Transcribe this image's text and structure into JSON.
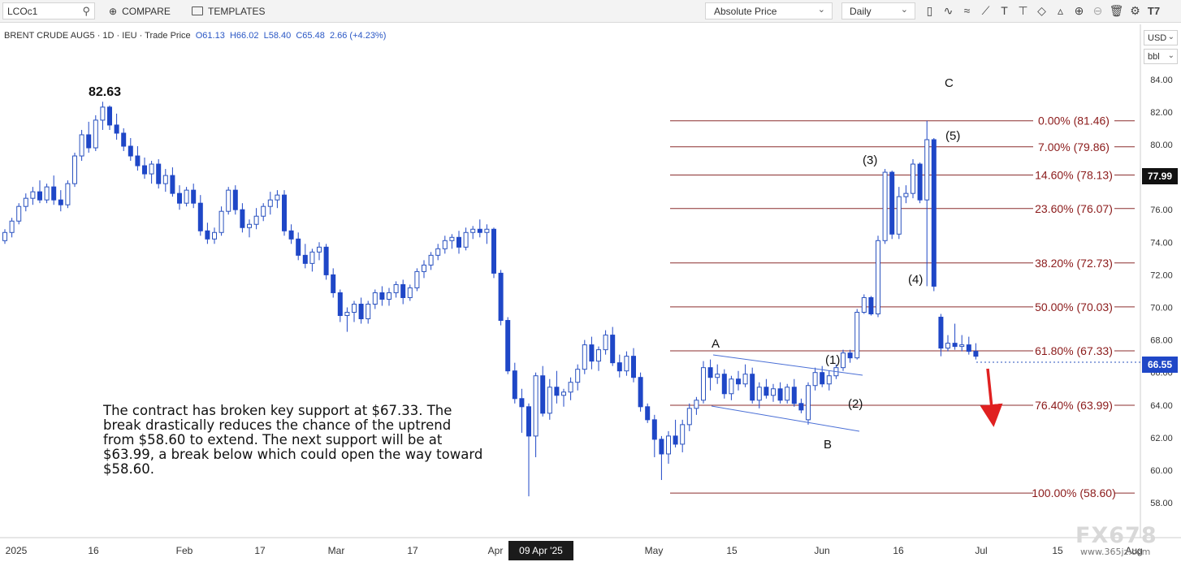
{
  "toolbar": {
    "symbol": "LCOc1",
    "compare_label": "COMPARE",
    "templates_label": "TEMPLATES",
    "price_mode": "Absolute Price",
    "interval": "Daily"
  },
  "instrument_line": {
    "name": "BRENT CRUDE AUG5 · 1D · IEU · Trade Price",
    "open": "O61.13",
    "high": "H66.02",
    "low": "L58.40",
    "close": "C65.48",
    "change": "2.66 (+4.23%)"
  },
  "currency": "USD",
  "unit": "bbl",
  "colors": {
    "candle_up_fill": "#ffffff",
    "candle_up_border": "#2a52be",
    "candle_down": "#1f47c7",
    "fib_line": "#8b2e2e",
    "fib_label": "#8b1a1a",
    "arrow": "#e02020",
    "trendline": "#4a6fd6"
  },
  "annotation_text": "The contract has broken key support at $67.33. The break drastically reduces the chance of the uptrend from $58.60 to extend. The next support will be at $63.99, a break below which could open the way toward $58.60.",
  "watermark": "FX678",
  "watermark_url": "www.365jz.com",
  "crosshair_date": "09 Apr '25",
  "chart_data": {
    "type": "candlestick",
    "title": "BRENT CRUDE AUG5",
    "ylim": [
      57,
      86
    ],
    "y_ticks": [
      58,
      60,
      62,
      64,
      66,
      68,
      70,
      72,
      74,
      76,
      78,
      80,
      82,
      84
    ],
    "y_tick_labels": [
      "58.00",
      "60.00",
      "62.00",
      "64.00",
      "66.00",
      "68.00",
      "70.00",
      "72.00",
      "74.00",
      "76.00",
      "78.00",
      "80.00",
      "82.00",
      "84.00"
    ],
    "x_labels": [
      "2025",
      "16",
      "Feb",
      "17",
      "Mar",
      "17",
      "Apr",
      "May",
      "15",
      "Jun",
      "16",
      "Jul",
      "15",
      "Aug"
    ],
    "last_price": "66.55",
    "marked_price": "77.99",
    "candles": [
      [
        74.1,
        74.8,
        73.9,
        74.6
      ],
      [
        74.6,
        75.5,
        74.3,
        75.3
      ],
      [
        75.3,
        76.4,
        75.1,
        76.2
      ],
      [
        76.2,
        77.0,
        75.9,
        76.7
      ],
      [
        76.7,
        77.4,
        76.3,
        77.1
      ],
      [
        77.1,
        77.8,
        76.4,
        76.6
      ],
      [
        76.6,
        77.6,
        76.4,
        77.4
      ],
      [
        77.4,
        78.1,
        76.3,
        76.6
      ],
      [
        76.6,
        77.2,
        75.9,
        76.3
      ],
      [
        76.3,
        77.8,
        76.1,
        77.6
      ],
      [
        77.6,
        79.5,
        77.4,
        79.3
      ],
      [
        79.3,
        80.9,
        79.0,
        80.6
      ],
      [
        80.6,
        81.4,
        79.5,
        79.8
      ],
      [
        79.8,
        81.8,
        79.6,
        81.5
      ],
      [
        81.5,
        82.63,
        80.9,
        82.3
      ],
      [
        82.3,
        82.4,
        80.9,
        81.2
      ],
      [
        81.2,
        81.9,
        80.3,
        80.7
      ],
      [
        80.7,
        81.0,
        79.6,
        79.9
      ],
      [
        79.9,
        80.4,
        79.0,
        79.3
      ],
      [
        79.3,
        79.9,
        78.4,
        78.7
      ],
      [
        78.7,
        79.2,
        77.9,
        78.2
      ],
      [
        78.2,
        79.0,
        77.6,
        78.8
      ],
      [
        78.8,
        79.1,
        77.3,
        77.6
      ],
      [
        77.6,
        78.5,
        77.1,
        78.1
      ],
      [
        78.1,
        78.6,
        76.8,
        77.0
      ],
      [
        77.0,
        77.5,
        76.0,
        76.4
      ],
      [
        76.4,
        77.4,
        76.2,
        77.2
      ],
      [
        77.2,
        77.6,
        76.1,
        76.4
      ],
      [
        76.4,
        76.9,
        74.4,
        74.7
      ],
      [
        74.7,
        75.2,
        73.9,
        74.2
      ],
      [
        74.2,
        74.9,
        73.9,
        74.6
      ],
      [
        74.6,
        76.2,
        74.4,
        75.9
      ],
      [
        75.9,
        77.4,
        75.7,
        77.2
      ],
      [
        77.2,
        77.5,
        75.7,
        76.0
      ],
      [
        76.0,
        76.4,
        74.6,
        74.9
      ],
      [
        74.9,
        75.4,
        74.3,
        75.1
      ],
      [
        75.1,
        76.1,
        74.8,
        75.6
      ],
      [
        75.6,
        76.4,
        75.3,
        76.2
      ],
      [
        76.2,
        77.1,
        75.7,
        76.6
      ],
      [
        76.6,
        77.2,
        76.1,
        76.9
      ],
      [
        76.9,
        77.2,
        74.4,
        74.7
      ],
      [
        74.7,
        75.1,
        73.9,
        74.2
      ],
      [
        74.2,
        74.6,
        72.9,
        73.2
      ],
      [
        73.2,
        73.9,
        72.4,
        72.7
      ],
      [
        72.7,
        73.6,
        72.2,
        73.4
      ],
      [
        73.4,
        74.0,
        72.9,
        73.7
      ],
      [
        73.7,
        73.9,
        71.7,
        72.0
      ],
      [
        72.0,
        72.4,
        70.6,
        70.9
      ],
      [
        70.9,
        71.1,
        69.1,
        69.5
      ],
      [
        69.5,
        70.0,
        68.5,
        69.7
      ],
      [
        69.7,
        70.4,
        69.1,
        70.2
      ],
      [
        70.2,
        70.6,
        69.0,
        69.3
      ],
      [
        69.3,
        70.4,
        69.0,
        70.2
      ],
      [
        70.2,
        71.1,
        69.9,
        70.9
      ],
      [
        70.9,
        71.3,
        70.1,
        70.5
      ],
      [
        70.5,
        71.2,
        70.1,
        70.9
      ],
      [
        70.9,
        71.6,
        70.6,
        71.4
      ],
      [
        71.4,
        71.7,
        70.2,
        70.6
      ],
      [
        70.6,
        71.4,
        70.4,
        71.2
      ],
      [
        71.2,
        72.4,
        71.0,
        72.2
      ],
      [
        72.2,
        72.9,
        71.8,
        72.6
      ],
      [
        72.6,
        73.4,
        72.3,
        73.2
      ],
      [
        73.2,
        73.9,
        72.9,
        73.6
      ],
      [
        73.6,
        74.4,
        73.3,
        74.1
      ],
      [
        74.1,
        74.5,
        73.6,
        74.3
      ],
      [
        74.3,
        74.7,
        73.3,
        73.7
      ],
      [
        73.7,
        74.9,
        73.5,
        74.6
      ],
      [
        74.6,
        75.0,
        74.2,
        74.8
      ],
      [
        74.8,
        75.4,
        74.3,
        74.6
      ],
      [
        74.6,
        75.1,
        73.9,
        74.8
      ],
      [
        74.8,
        74.9,
        71.8,
        72.1
      ],
      [
        72.1,
        72.3,
        68.9,
        69.2
      ],
      [
        69.2,
        69.4,
        65.9,
        66.1
      ],
      [
        66.1,
        66.6,
        64.1,
        64.4
      ],
      [
        64.4,
        65.0,
        62.3,
        63.9
      ],
      [
        63.9,
        64.1,
        58.4,
        62.1
      ],
      [
        62.1,
        66.0,
        60.8,
        65.8
      ],
      [
        65.8,
        66.4,
        63.3,
        63.5
      ],
      [
        63.5,
        65.6,
        63.1,
        65.1
      ],
      [
        65.1,
        66.1,
        64.1,
        64.6
      ],
      [
        64.6,
        65.0,
        63.9,
        64.8
      ],
      [
        64.8,
        65.7,
        64.3,
        65.4
      ],
      [
        65.4,
        66.5,
        64.9,
        66.2
      ],
      [
        66.2,
        68.0,
        65.9,
        67.7
      ],
      [
        67.7,
        68.2,
        66.2,
        66.7
      ],
      [
        66.7,
        67.6,
        66.1,
        67.4
      ],
      [
        67.4,
        68.6,
        67.1,
        68.3
      ],
      [
        68.3,
        68.8,
        66.4,
        66.6
      ],
      [
        66.6,
        67.1,
        65.7,
        66.1
      ],
      [
        66.1,
        67.3,
        65.8,
        67.0
      ],
      [
        67.0,
        67.5,
        65.4,
        65.7
      ],
      [
        65.7,
        66.0,
        63.6,
        63.9
      ],
      [
        63.9,
        64.1,
        62.9,
        63.1
      ],
      [
        63.1,
        63.4,
        60.8,
        61.9
      ],
      [
        61.9,
        62.1,
        59.4,
        61.0
      ],
      [
        61.0,
        62.4,
        60.4,
        62.1
      ],
      [
        62.1,
        63.1,
        61.4,
        61.6
      ],
      [
        61.6,
        63.1,
        61.1,
        62.8
      ],
      [
        62.8,
        64.1,
        62.4,
        63.8
      ],
      [
        63.8,
        64.5,
        63.4,
        64.3
      ],
      [
        64.3,
        66.7,
        64.1,
        66.3
      ],
      [
        66.3,
        66.8,
        64.9,
        65.7
      ],
      [
        65.7,
        66.5,
        65.3,
        65.9
      ],
      [
        65.9,
        66.2,
        64.4,
        64.7
      ],
      [
        64.7,
        65.8,
        64.3,
        65.6
      ],
      [
        65.6,
        66.1,
        64.9,
        65.3
      ],
      [
        65.3,
        66.5,
        65.1,
        65.9
      ],
      [
        65.9,
        66.3,
        64.1,
        64.3
      ],
      [
        64.3,
        65.4,
        63.8,
        65.1
      ],
      [
        65.1,
        65.6,
        64.4,
        64.6
      ],
      [
        64.6,
        65.3,
        64.2,
        65.0
      ],
      [
        65.0,
        65.4,
        64.1,
        64.3
      ],
      [
        64.3,
        65.3,
        64.1,
        65.1
      ],
      [
        65.1,
        65.6,
        63.9,
        64.1
      ],
      [
        64.1,
        64.4,
        63.5,
        63.7
      ],
      [
        63.1,
        65.4,
        62.8,
        65.2
      ],
      [
        65.2,
        66.3,
        64.9,
        66.0
      ],
      [
        66.0,
        66.4,
        65.1,
        65.3
      ],
      [
        65.3,
        66.1,
        64.9,
        65.8
      ],
      [
        65.8,
        66.5,
        65.6,
        66.3
      ],
      [
        66.3,
        67.4,
        66.1,
        67.2
      ],
      [
        67.2,
        67.4,
        66.6,
        66.9
      ],
      [
        66.9,
        69.9,
        66.8,
        69.7
      ],
      [
        69.7,
        70.8,
        69.6,
        70.6
      ],
      [
        70.6,
        70.7,
        69.5,
        69.6
      ],
      [
        69.6,
        74.4,
        69.4,
        74.1
      ],
      [
        74.1,
        78.5,
        73.9,
        78.3
      ],
      [
        78.3,
        78.4,
        74.2,
        74.5
      ],
      [
        74.5,
        77.4,
        74.2,
        76.8
      ],
      [
        76.8,
        77.5,
        76.4,
        77.0
      ],
      [
        77.0,
        79.1,
        76.7,
        78.8
      ],
      [
        78.8,
        78.9,
        76.4,
        76.6
      ],
      [
        76.6,
        81.46,
        71.3,
        80.3
      ],
      [
        80.3,
        80.4,
        71.0,
        71.3
      ],
      [
        69.4,
        69.6,
        67.0,
        67.5
      ],
      [
        67.5,
        68.3,
        67.3,
        67.8
      ],
      [
        67.8,
        69.0,
        67.4,
        67.6
      ],
      [
        67.6,
        68.3,
        67.3,
        67.7
      ],
      [
        67.7,
        68.2,
        67.1,
        67.3
      ],
      [
        67.3,
        67.8,
        66.8,
        67.0
      ]
    ],
    "fib_levels": [
      {
        "label": "0.00% (81.46)",
        "value": 81.46
      },
      {
        "label": "7.00% (79.86)",
        "value": 79.86
      },
      {
        "label": "14.60% (78.13)",
        "value": 78.13
      },
      {
        "label": "23.60% (76.07)",
        "value": 76.07
      },
      {
        "label": "38.20% (72.73)",
        "value": 72.73
      },
      {
        "label": "50.00% (70.03)",
        "value": 70.03
      },
      {
        "label": "61.80% (67.33)",
        "value": 67.33
      },
      {
        "label": "76.40% (63.99)",
        "value": 63.99
      },
      {
        "label": "100.00% (58.60)",
        "value": 58.6
      }
    ],
    "annotations": [
      {
        "text": "82.63"
      },
      {
        "text": "A"
      },
      {
        "text": "B"
      },
      {
        "text": "C"
      },
      {
        "text": "(1)"
      },
      {
        "text": "(2)"
      },
      {
        "text": "(3)"
      },
      {
        "text": "(4)"
      },
      {
        "text": "(5)"
      }
    ]
  }
}
